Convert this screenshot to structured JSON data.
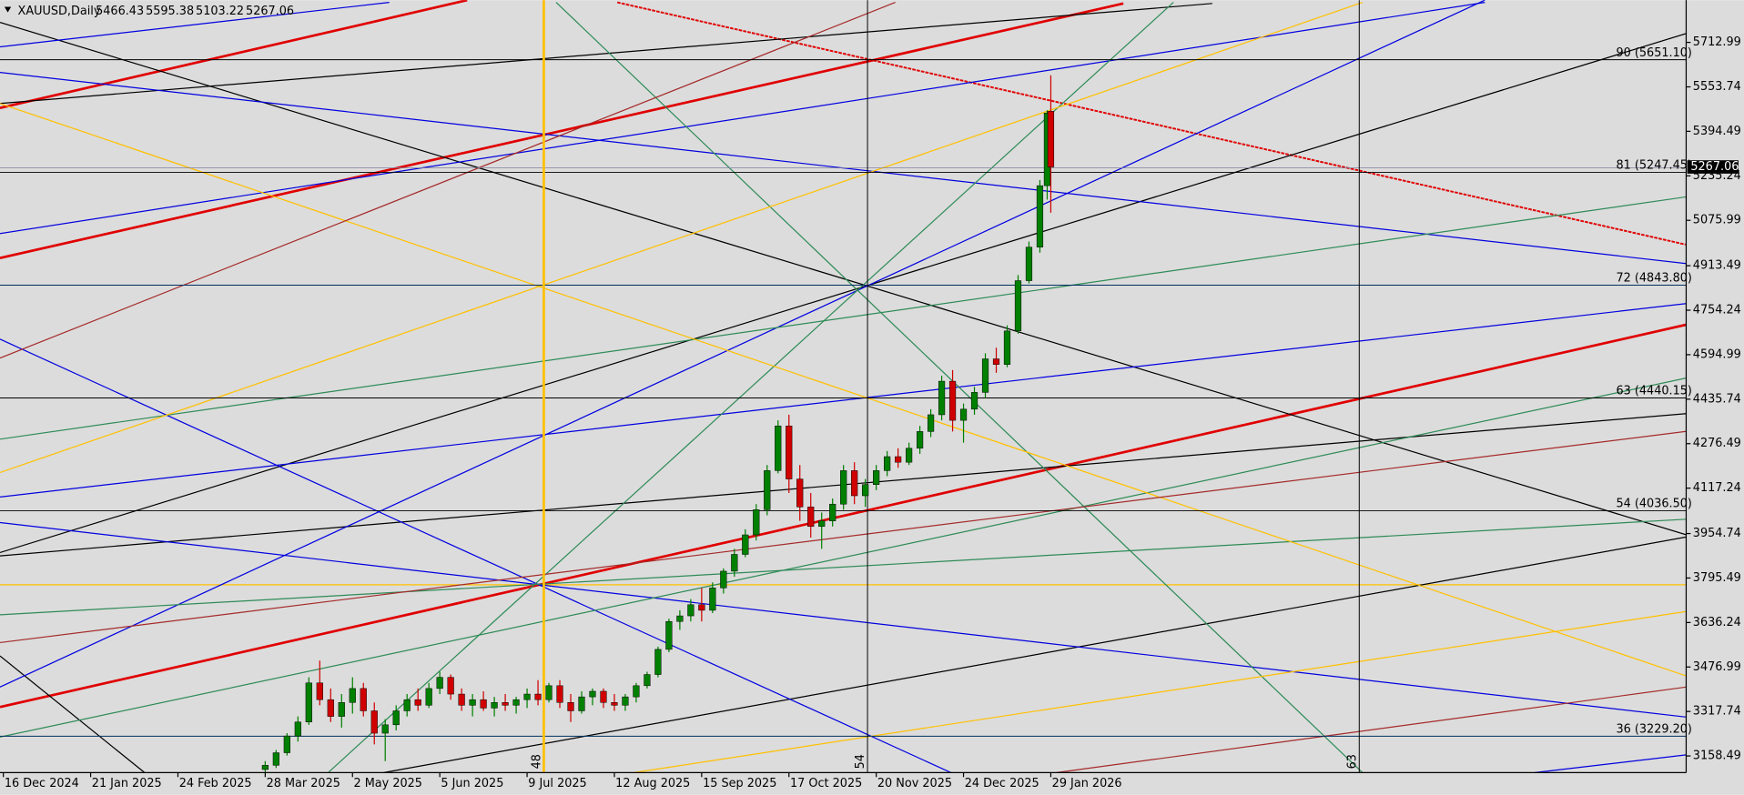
{
  "chart_data": {
    "type": "candlestick",
    "title": "XAUUSD,Daily",
    "x": [
      72,
      75,
      78,
      81,
      84,
      87,
      90,
      93,
      96,
      99,
      102,
      105,
      108,
      111,
      114,
      117,
      120,
      123,
      126,
      129,
      132,
      135,
      138,
      141,
      144,
      147,
      150,
      153,
      156,
      159,
      162,
      165,
      168,
      171,
      174,
      177,
      180,
      183,
      186,
      189,
      192,
      195,
      198,
      201,
      204,
      207,
      210,
      213,
      216,
      219,
      222,
      225,
      228,
      231,
      234,
      237,
      240,
      243,
      246,
      249,
      252,
      255,
      258,
      261,
      264,
      267,
      270,
      273,
      276,
      279,
      282,
      285,
      287,
      288
    ],
    "open": [
      3110,
      3125,
      3170,
      3230,
      3280,
      3420,
      3360,
      3300,
      3350,
      3400,
      3320,
      3240,
      3270,
      3320,
      3360,
      3340,
      3400,
      3440,
      3380,
      3340,
      3360,
      3330,
      3350,
      3340,
      3360,
      3380,
      3360,
      3410,
      3350,
      3320,
      3370,
      3390,
      3350,
      3340,
      3370,
      3410,
      3450,
      3540,
      3640,
      3660,
      3700,
      3680,
      3760,
      3820,
      3880,
      3950,
      4040,
      4180,
      4340,
      4150,
      4050,
      3980,
      4000,
      4060,
      4180,
      4090,
      4130,
      4180,
      4230,
      4210,
      4260,
      4320,
      4380,
      4500,
      4360,
      4400,
      4460,
      4580,
      4560,
      4680,
      4860,
      4980,
      5200,
      5466.43
    ],
    "high": [
      3140,
      3180,
      3240,
      3300,
      3440,
      3500,
      3400,
      3380,
      3440,
      3420,
      3350,
      3290,
      3340,
      3380,
      3400,
      3420,
      3460,
      3450,
      3400,
      3380,
      3390,
      3370,
      3380,
      3370,
      3400,
      3430,
      3420,
      3430,
      3380,
      3390,
      3400,
      3400,
      3380,
      3380,
      3420,
      3460,
      3550,
      3650,
      3680,
      3720,
      3760,
      3780,
      3830,
      3900,
      3970,
      4060,
      4200,
      4360,
      4380,
      4200,
      4100,
      4030,
      4080,
      4200,
      4210,
      4150,
      4200,
      4250,
      4260,
      4280,
      4340,
      4400,
      4520,
      4540,
      4420,
      4480,
      4600,
      4620,
      4700,
      4880,
      5000,
      5220,
      5470,
      5595.38
    ],
    "low": [
      3095,
      3115,
      3160,
      3210,
      3270,
      3340,
      3280,
      3260,
      3310,
      3300,
      3200,
      3140,
      3250,
      3300,
      3320,
      3330,
      3380,
      3360,
      3320,
      3300,
      3320,
      3300,
      3320,
      3310,
      3330,
      3340,
      3350,
      3330,
      3280,
      3310,
      3340,
      3330,
      3320,
      3320,
      3350,
      3400,
      3440,
      3530,
      3610,
      3640,
      3640,
      3670,
      3740,
      3800,
      3870,
      3930,
      4020,
      4170,
      4100,
      4000,
      3940,
      3900,
      3980,
      4040,
      4060,
      4050,
      4110,
      4160,
      4190,
      4200,
      4240,
      4300,
      4360,
      4320,
      4280,
      4380,
      4440,
      4530,
      4550,
      4670,
      4850,
      4960,
      5150,
      5103.22
    ],
    "close": [
      3125,
      3170,
      3230,
      3280,
      3420,
      3360,
      3300,
      3350,
      3400,
      3320,
      3240,
      3270,
      3320,
      3360,
      3340,
      3400,
      3440,
      3380,
      3340,
      3360,
      3330,
      3350,
      3340,
      3360,
      3380,
      3360,
      3410,
      3350,
      3320,
      3370,
      3390,
      3350,
      3340,
      3370,
      3410,
      3450,
      3540,
      3640,
      3660,
      3700,
      3680,
      3760,
      3820,
      3880,
      3950,
      4040,
      4180,
      4340,
      4150,
      4050,
      3980,
      4000,
      4060,
      4180,
      4090,
      4130,
      4180,
      4230,
      4210,
      4260,
      4320,
      4380,
      4500,
      4360,
      4400,
      4460,
      4580,
      4560,
      4680,
      4860,
      4980,
      5200,
      5460,
      5267.06
    ],
    "up_color": "#008000",
    "down_color": "#d00000",
    "xlim": [
      -0.92,
      462.69
    ],
    "xticks": [
      {
        "value": 0,
        "label": "16 Dec 2024"
      },
      {
        "value": 24,
        "label": "21 Jan 2025"
      },
      {
        "value": 48,
        "label": "24 Feb 2025"
      },
      {
        "value": 72,
        "label": "28 Mar 2025"
      },
      {
        "value": 96,
        "label": "2 May 2025"
      },
      {
        "value": 120,
        "label": "5 Jun 2025"
      },
      {
        "value": 144,
        "label": "9 Jul 2025"
      },
      {
        "value": 168,
        "label": "12 Aug 2025"
      },
      {
        "value": 192,
        "label": "15 Sep 2025"
      },
      {
        "value": 216,
        "label": "17 Oct 2025"
      },
      {
        "value": 240,
        "label": "20 Nov 2025"
      },
      {
        "value": 264,
        "label": "24 Dec 2025"
      },
      {
        "value": 288,
        "label": "29 Jan 2026"
      }
    ],
    "ylim": [
      3098.8,
      5864.2
    ],
    "yticks": [
      5712.99,
      5553.74,
      5394.49,
      5235.24,
      5075.99,
      4913.49,
      4754.24,
      4594.99,
      4435.74,
      4276.49,
      4117.24,
      3954.74,
      3795.49,
      3636.24,
      3476.99,
      3317.74,
      3158.49
    ],
    "levels": [
      {
        "value": 5651.1,
        "label": "90 (5651.10)"
      },
      {
        "value": 5247.45,
        "label": "81 (5247.45)"
      },
      {
        "value": 4843.8,
        "label": "72 (4843.80)"
      },
      {
        "value": 4440.15,
        "label": "63 (4440.15)"
      },
      {
        "value": 4036.5,
        "label": "54 (4036.50)"
      },
      {
        "value": 3229.2,
        "label": "36 (3229.20)"
      }
    ],
    "verticals": [
      {
        "value": 148.6,
        "label": "48",
        "color": "#ffc000"
      },
      {
        "value": 237.6,
        "label": "54",
        "color": "#000000"
      },
      {
        "value": 372.8,
        "label": "63",
        "color": "#000000"
      }
    ]
  }
}
